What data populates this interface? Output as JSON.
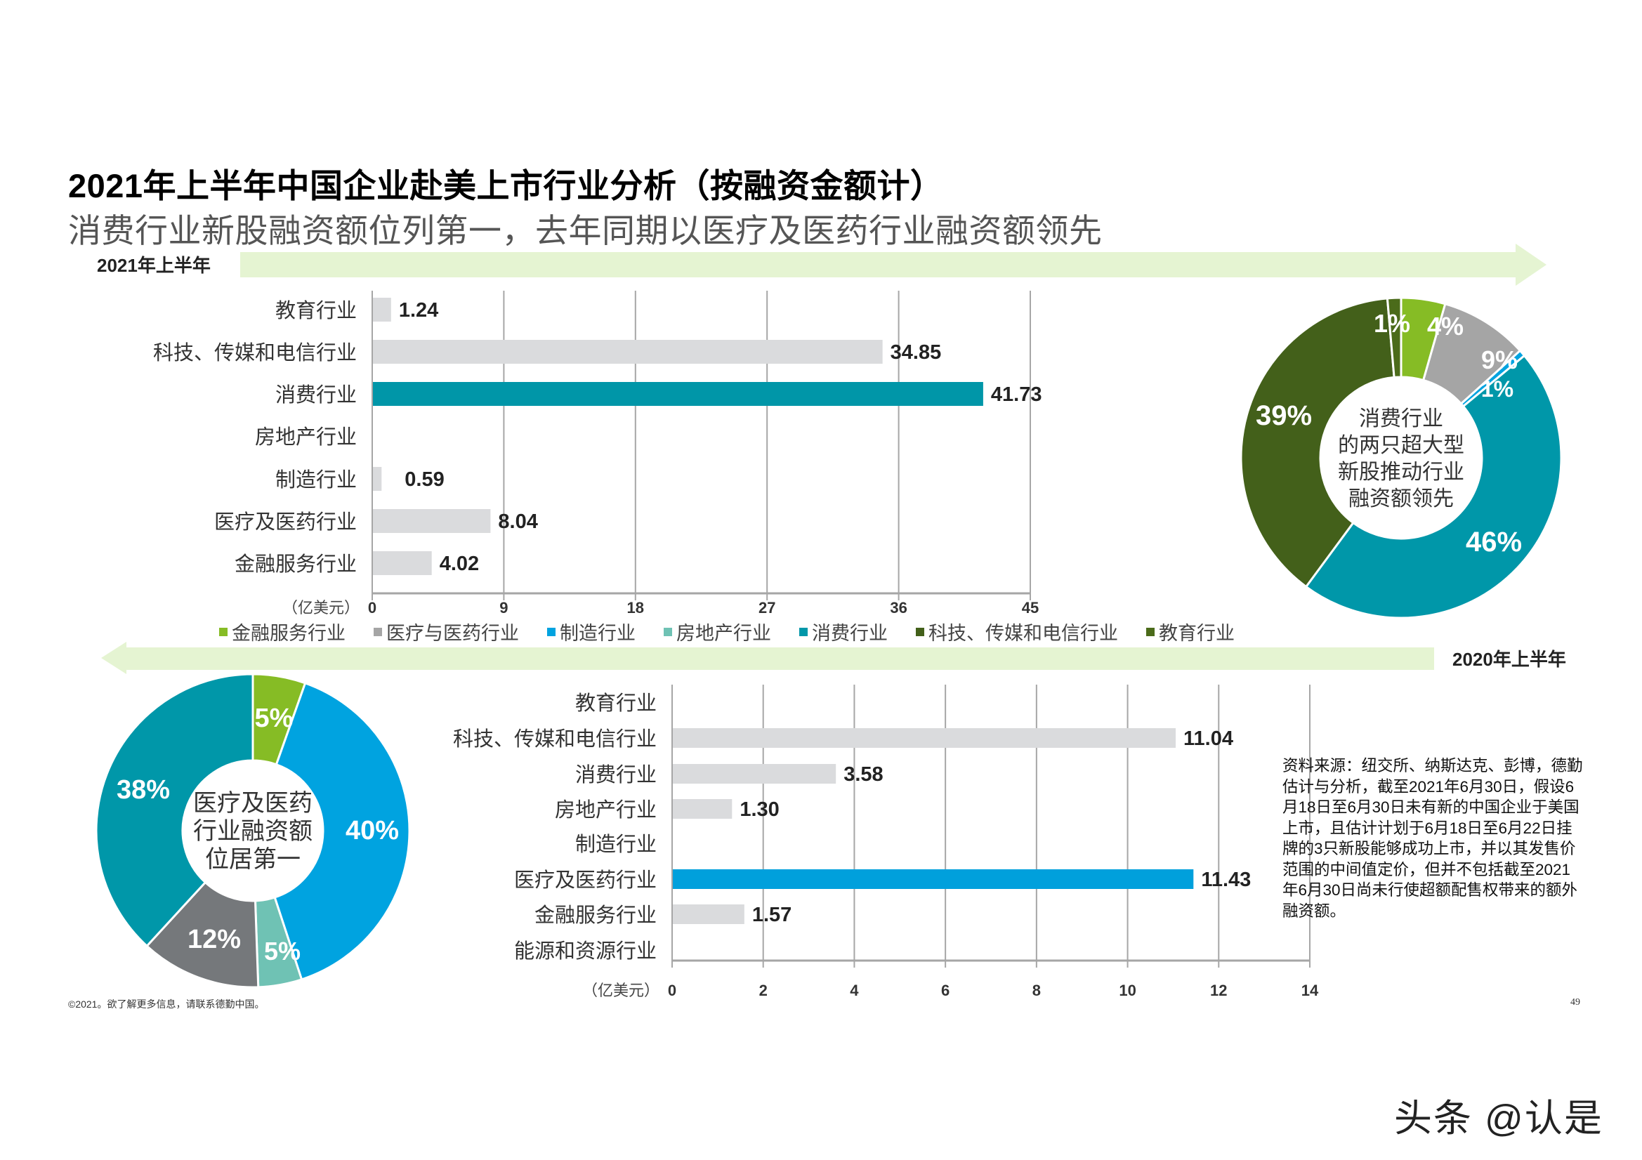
{
  "header": {
    "title": "2021年上半年中国企业赴美上市行业分析（按融资金额计）",
    "subtitle": "消费行业新股融资额位列第一，去年同期以医疗及医药行业融资额领先"
  },
  "periods": {
    "top": "2021年上半年",
    "bottom": "2020年上半年"
  },
  "colors": {
    "arrow": "#E5F4D2",
    "bar_default": "#DADBDD",
    "bar_highlight_2021": "#0096A8",
    "bar_highlight_2020": "#00A0DC",
    "gridline": "#A6A6A6",
    "finance": "#86BC25",
    "healthcare": "#A5A5A5",
    "manufacturing": "#00A3E0",
    "real_estate": "#6FC2B4",
    "consumer": "#0097A9",
    "tmt": "#43601A",
    "education": "#4B6B1A"
  },
  "legend": [
    {
      "label": "金融服务行业",
      "color": "#86BC25"
    },
    {
      "label": "医疗与医药行业",
      "color": "#A5A5A5"
    },
    {
      "label": "制造行业",
      "color": "#00A3E0"
    },
    {
      "label": "房地产行业",
      "color": "#6FC2B4"
    },
    {
      "label": "消费行业",
      "color": "#0097A9"
    },
    {
      "label": "科技、传媒和电信行业",
      "color": "#43601A"
    },
    {
      "label": "教育行业",
      "color": "#4B6B1A"
    }
  ],
  "note": "资料来源：纽交所、纳斯达克、彭博，德勤估计与分析，截至2021年6月30日，假设6月18日至6月30日未有新的中国企业于美国上市，且估计计划于6月18日至6月22日挂牌的3只新股能够成功上市，并以其发售价范围的中间值定价，但并不包括截至2021年6月30日尚未行使超额配售权带来的额外融资额。",
  "footer": {
    "copyright": "©2021。欲了解更多信息，请联系德勤中国。",
    "page_number": "49",
    "watermark": "头条 @认是"
  },
  "chart_data": [
    {
      "type": "bar",
      "orientation": "horizontal",
      "title": "2021年上半年",
      "xlabel": "（亿美元）",
      "unit_label": "（亿美元）",
      "categories": [
        "教育行业",
        "科技、传媒和电信行业",
        "消费行业",
        "房地产行业",
        "制造行业",
        "医疗及医药行业",
        "金融服务行业"
      ],
      "values": [
        1.24,
        34.85,
        41.73,
        null,
        0.59,
        8.04,
        4.02
      ],
      "value_labels": [
        "1.24",
        "34.85",
        "41.73",
        "",
        "0.59",
        "8.04",
        "4.02"
      ],
      "highlight": "消费行业",
      "xlim": [
        0,
        45
      ],
      "xticks": [
        "0",
        "9",
        "18",
        "27",
        "36",
        "45"
      ],
      "grid": true
    },
    {
      "type": "pie",
      "donut": true,
      "title": "2021年上半年",
      "center_text": [
        "消费行业",
        "的两只超大型",
        "新股推动行业",
        "融资额领先"
      ],
      "slices": [
        {
          "label": "金融服务行业",
          "value": 4.02,
          "pct": "4%",
          "color": "#86BC25"
        },
        {
          "label": "医疗与医药行业",
          "value": 8.04,
          "pct": "9%",
          "color": "#A5A5A5"
        },
        {
          "label": "制造行业",
          "value": 0.59,
          "pct": "1%",
          "color": "#00A3E0"
        },
        {
          "label": "房地产行业",
          "value": 0,
          "pct": "",
          "color": "#6FC2B4"
        },
        {
          "label": "消费行业",
          "value": 41.73,
          "pct": "46%",
          "color": "#0097A9"
        },
        {
          "label": "科技、传媒和电信行业",
          "value": 34.85,
          "pct": "39%",
          "color": "#43601A"
        },
        {
          "label": "教育行业",
          "value": 1.24,
          "pct": "1%",
          "color": "#4B6B1A"
        }
      ]
    },
    {
      "type": "bar",
      "orientation": "horizontal",
      "title": "2020年上半年",
      "xlabel": "（亿美元）",
      "unit_label": "（亿美元）",
      "categories": [
        "教育行业",
        "科技、传媒和电信行业",
        "消费行业",
        "房地产行业",
        "制造行业",
        "医疗及医药行业",
        "金融服务行业",
        "能源和资源行业"
      ],
      "values": [
        null,
        11.04,
        3.58,
        1.3,
        null,
        11.43,
        1.57,
        null
      ],
      "value_labels": [
        "",
        "11.04",
        "3.58",
        "1.30",
        "",
        "11.43",
        "1.57",
        ""
      ],
      "highlight": "医疗及医药行业",
      "xlim": [
        0,
        14
      ],
      "xticks": [
        "0",
        "2",
        "4",
        "6",
        "8",
        "10",
        "12",
        "14"
      ],
      "grid": true
    },
    {
      "type": "pie",
      "donut": true,
      "title": "2020年上半年",
      "center_text": [
        "医疗及医药",
        "行业融资额",
        "位居第一"
      ],
      "slices": [
        {
          "label": "金融服务行业",
          "value": 1.57,
          "pct": "5%",
          "color": "#86BC25"
        },
        {
          "label": "医疗及医药行业",
          "value": 11.43,
          "pct": "40%",
          "color": "#00A3E0"
        },
        {
          "label": "房地产行业",
          "value": 1.3,
          "pct": "5%",
          "color": "#6FC2B4"
        },
        {
          "label": "消费行业",
          "value": 3.58,
          "pct": "12%",
          "color": "#75787B"
        },
        {
          "label": "科技、传媒和电信行业",
          "value": 11.04,
          "pct": "38%",
          "color": "#0097A9"
        }
      ]
    }
  ]
}
